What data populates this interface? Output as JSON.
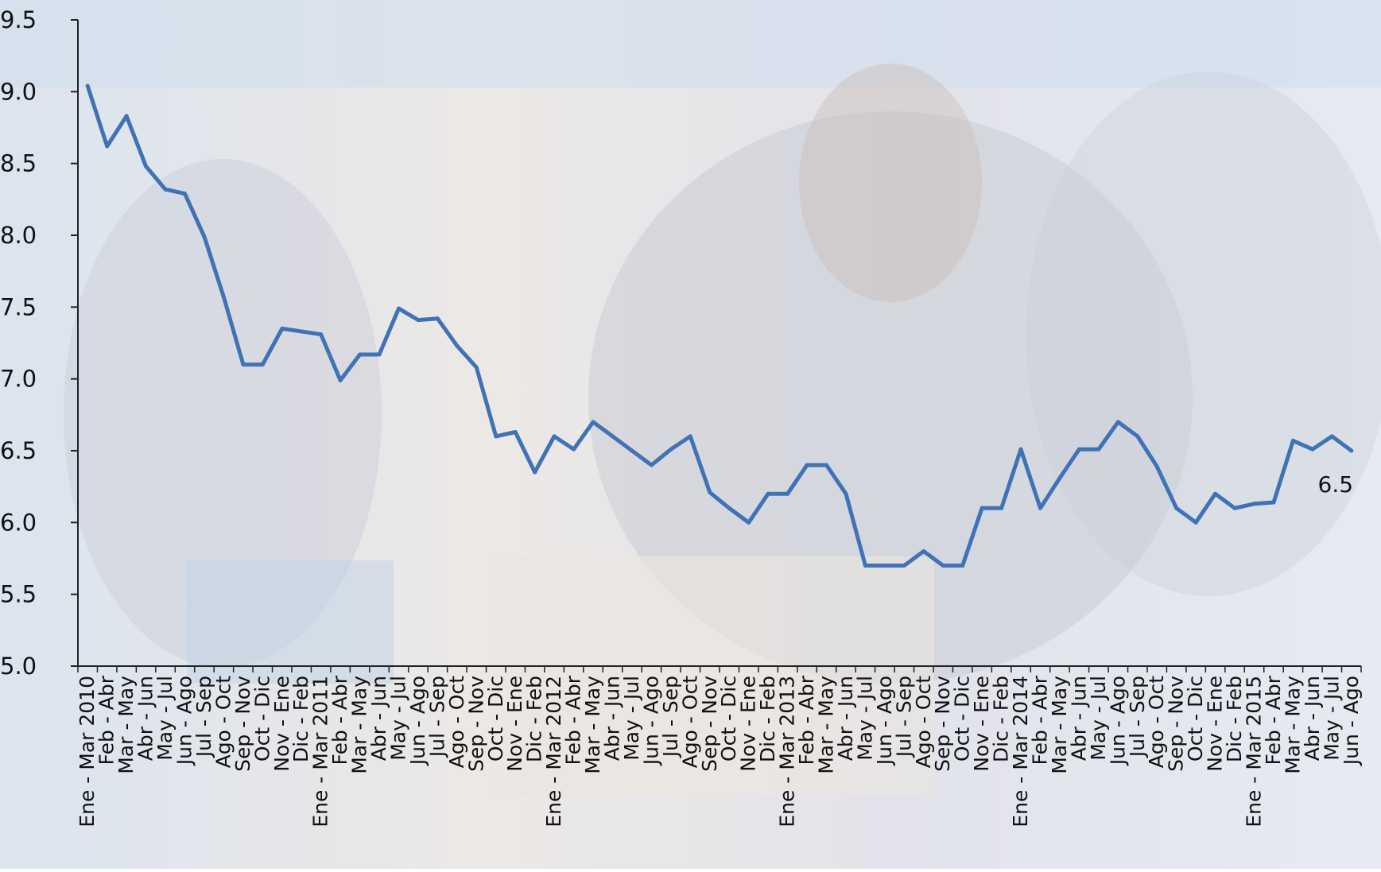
{
  "chart_data": {
    "type": "line",
    "title": "",
    "xlabel": "",
    "ylabel": "",
    "ylim": [
      5.0,
      9.5
    ],
    "yticks": [
      "5.0",
      "5.5",
      "6.0",
      "6.5",
      "7.0",
      "7.5",
      "8.0",
      "8.5",
      "9.0",
      "9.5"
    ],
    "grid": false,
    "legend": "none",
    "line_color": "#3f73b5",
    "categories": [
      "Ene - Mar 2010",
      "Feb - Abr",
      "Mar - May",
      "Abr - Jun",
      "May - Jul",
      "Jun - Ago",
      "Jul - Sep",
      "Ago - Oct",
      "Sep - Nov",
      "Oct - Dic",
      "Nov - Ene",
      "Dic - Feb",
      "Ene - Mar 2011",
      "Feb - Abr",
      "Mar - May",
      "Abr - Jun",
      "May - Jul",
      "Jun - Ago",
      "Jul - Sep",
      "Ago - Oct",
      "Sep - Nov",
      "Oct - Dic",
      "Nov - Ene",
      "Dic - Feb",
      "Ene - Mar 2012",
      "Feb - Abr",
      "Mar - May",
      "Abr - Jun",
      "May - Jul",
      "Jun - Ago",
      "Jul - Sep",
      "Ago - Oct",
      "Sep - Nov",
      "Oct - Dic",
      "Nov - Ene",
      "Dic - Feb",
      "Ene - Mar 2013",
      "Feb - Abr",
      "Mar - May",
      "Abr - Jun",
      "May - Jul",
      "Jun - Ago",
      "Jul - Sep",
      "Ago - Oct",
      "Sep - Nov",
      "Oct - Dic",
      "Nov - Ene",
      "Dic - Feb",
      "Ene - Mar 2014",
      "Feb - Abr",
      "Mar - May",
      "Abr - Jun",
      "May - Jul",
      "Jun - Ago",
      "Jul - Sep",
      "Ago - Oct",
      "Sep - Nov",
      "Oct - Dic",
      "Nov - Ene",
      "Dic - Feb",
      "Ene - Mar 2015",
      "Feb - Abr",
      "Mar - May",
      "Abr - Jun",
      "May - Jul",
      "Jun - Ago"
    ],
    "series": [
      {
        "values": [
          9.04,
          8.62,
          8.83,
          8.48,
          8.32,
          8.29,
          7.99,
          7.57,
          7.1,
          7.1,
          7.35,
          7.33,
          7.31,
          6.99,
          7.17,
          7.17,
          7.49,
          7.41,
          7.42,
          7.23,
          7.08,
          6.6,
          6.63,
          6.35,
          6.6,
          6.51,
          6.7,
          6.6,
          6.5,
          6.4,
          6.51,
          6.6,
          6.21,
          6.1,
          6.0,
          6.2,
          6.2,
          6.4,
          6.4,
          6.2,
          5.7,
          5.7,
          5.7,
          5.8,
          5.7,
          5.7,
          6.1,
          6.1,
          6.51,
          6.1,
          6.31,
          6.51,
          6.51,
          6.7,
          6.6,
          6.39,
          6.1,
          6.0,
          6.2,
          6.1,
          6.13,
          6.14,
          6.57,
          6.51,
          6.6,
          6.5
        ]
      }
    ],
    "last_value_label": "6.5"
  }
}
